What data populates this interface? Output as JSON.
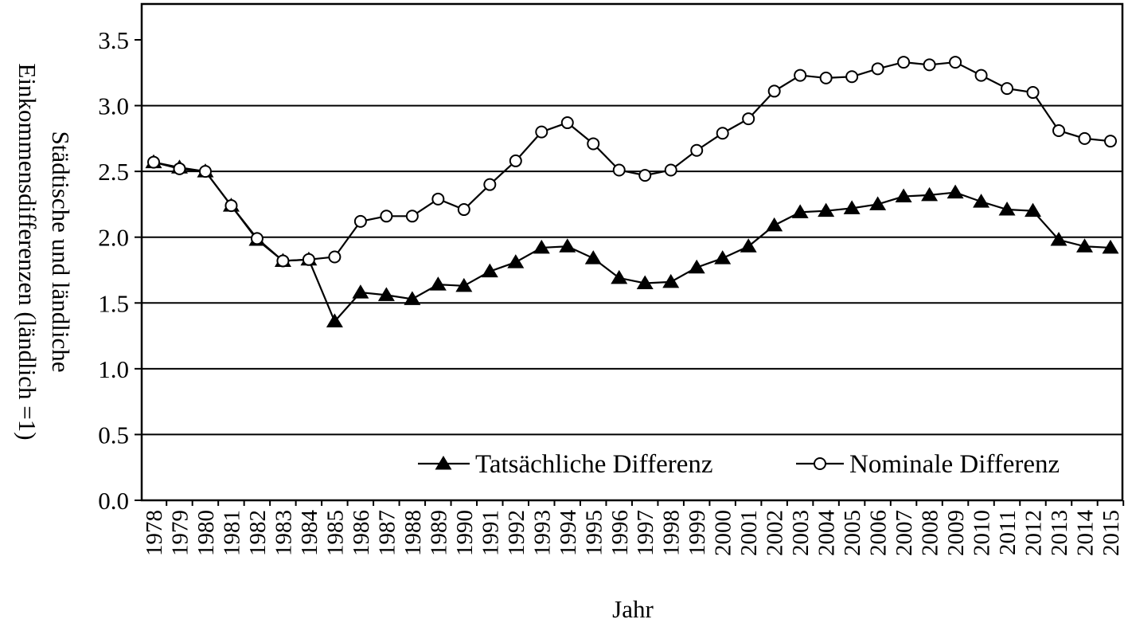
{
  "chart_data": {
    "type": "line",
    "title": "",
    "xlabel": "Jahr",
    "ylabel_lines": [
      "Städtische und ländliche",
      "Einkommensdifferenzen (ländlich =1)"
    ],
    "ylim": [
      0,
      3.5
    ],
    "yticks": [
      "0.0",
      "0.5",
      "1.0",
      "1.5",
      "2.0",
      "2.5",
      "3.0",
      "3.5"
    ],
    "grid": true,
    "legend_position": "bottom-right",
    "x": [
      "1978",
      "1979",
      "1980",
      "1981",
      "1982",
      "1983",
      "1984",
      "1985",
      "1986",
      "1987",
      "1988",
      "1989",
      "1990",
      "1991",
      "1992",
      "1993",
      "1994",
      "1995",
      "1996",
      "1997",
      "1998",
      "1999",
      "2000",
      "2001",
      "2002",
      "2003",
      "2004",
      "2005",
      "2006",
      "2007",
      "2008",
      "2009",
      "2010",
      "2011",
      "2012",
      "2013",
      "2014",
      "2015"
    ],
    "series": [
      {
        "name": "Tatsächliche Differenz",
        "marker": "filled-triangle",
        "values": [
          2.57,
          2.53,
          2.5,
          2.24,
          1.98,
          1.82,
          1.83,
          1.36,
          1.58,
          1.56,
          1.53,
          1.64,
          1.63,
          1.74,
          1.81,
          1.92,
          1.93,
          1.84,
          1.69,
          1.65,
          1.66,
          1.77,
          1.84,
          1.93,
          2.09,
          2.19,
          2.2,
          2.22,
          2.25,
          2.31,
          2.32,
          2.34,
          2.27,
          2.21,
          2.2,
          1.98,
          1.93,
          1.92
        ]
      },
      {
        "name": "Nominale Differenz",
        "marker": "open-circle",
        "values": [
          2.57,
          2.52,
          2.5,
          2.24,
          1.99,
          1.82,
          1.83,
          1.85,
          2.12,
          2.16,
          2.16,
          2.29,
          2.21,
          2.4,
          2.58,
          2.8,
          2.87,
          2.71,
          2.51,
          2.47,
          2.51,
          2.66,
          2.79,
          2.9,
          3.11,
          3.23,
          3.21,
          3.22,
          3.28,
          3.33,
          3.31,
          3.33,
          3.23,
          3.13,
          3.1,
          2.81,
          2.75,
          2.73
        ]
      }
    ]
  }
}
